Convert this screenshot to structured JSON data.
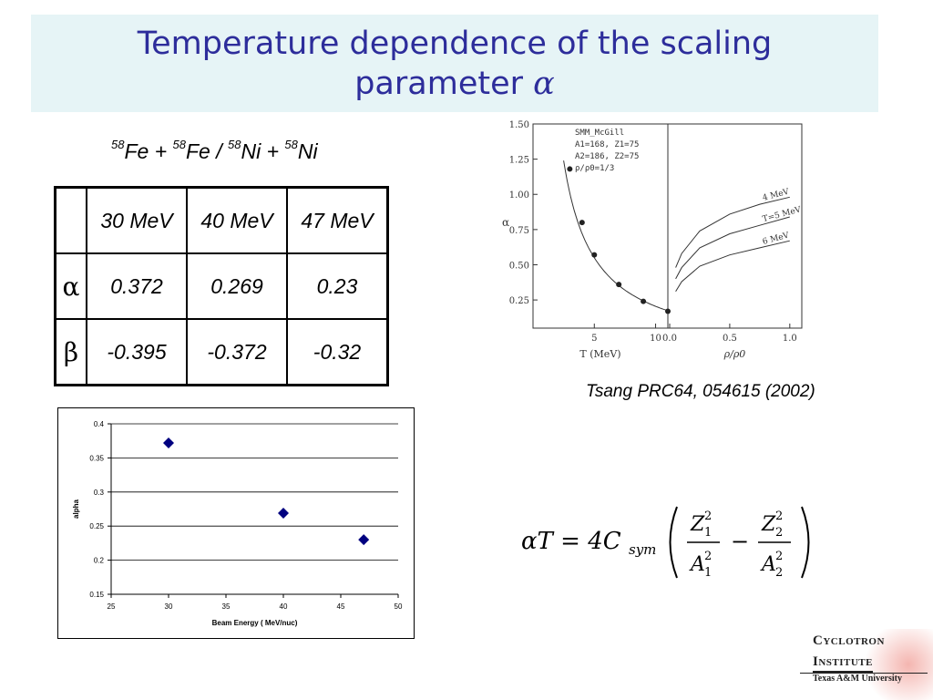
{
  "slide": {
    "title_line1": "Temperature dependence of the scaling",
    "title_line2": "parameter",
    "title_symbol": "α",
    "reaction": {
      "mass": "58",
      "p1": "Fe + ",
      "p2": "Fe / ",
      "p3": "Ni + ",
      "p4": "Ni"
    },
    "citation": "Tsang PRC64, 054615 (2002)",
    "formula": {
      "lhs": "αT = 4C",
      "sub": "sym"
    }
  },
  "table": {
    "headers": [
      "30 MeV",
      "40 MeV",
      "47 MeV"
    ],
    "rows": [
      {
        "label": "α",
        "values": [
          "0.372",
          "0.269",
          "0.23"
        ]
      },
      {
        "label": "β",
        "values": [
          "-0.395",
          "-0.372",
          "-0.32"
        ]
      }
    ]
  },
  "chart_data": [
    {
      "type": "scatter",
      "x": [
        30,
        40,
        47
      ],
      "y": [
        0.372,
        0.269,
        0.23
      ],
      "xlabel": "Beam Energy ( MeV/nuc)",
      "ylabel": "alpha",
      "xlim": [
        25,
        50
      ],
      "ylim": [
        0.15,
        0.4
      ],
      "xticks": [
        "25",
        "30",
        "35",
        "40",
        "45",
        "50"
      ],
      "yticks": [
        "0.15",
        "0.2",
        "0.25",
        "0.3",
        "0.35",
        "0.4"
      ],
      "grid": "horizontal",
      "marker_color": "#000080"
    },
    {
      "type": "scatter",
      "x": [
        3,
        4,
        5,
        7,
        9,
        11
      ],
      "y": [
        1.18,
        0.8,
        0.57,
        0.36,
        0.24,
        0.17
      ],
      "xlabel": "T (MeV)",
      "ylabel": "α",
      "xlim": [
        0,
        11
      ],
      "ylim": [
        0.05,
        1.5
      ],
      "xticks": [
        "5",
        "10"
      ],
      "yticks": [
        "0.25",
        "0.50",
        "0.75",
        "1.00",
        "1.25",
        "1.50"
      ],
      "legend_text": [
        "SMM_McGill",
        "A1=168, Z1=75",
        "A2=186, Z2=75",
        "ρ/ρ0=1/3"
      ]
    },
    {
      "type": "line",
      "xlabel": "ρ/ρ0",
      "xticks": [
        "0.0",
        "0.5",
        "1.0"
      ],
      "series": [
        {
          "name": "4 MeV",
          "x": [
            0.05,
            0.1,
            0.25,
            0.5,
            0.75,
            1.0
          ],
          "y": [
            0.48,
            0.58,
            0.74,
            0.86,
            0.93,
            0.98
          ]
        },
        {
          "name": "T=5 MeV",
          "x": [
            0.05,
            0.1,
            0.25,
            0.5,
            0.75,
            1.0
          ],
          "y": [
            0.4,
            0.48,
            0.62,
            0.72,
            0.78,
            0.84
          ]
        },
        {
          "name": "6 MeV",
          "x": [
            0.05,
            0.1,
            0.25,
            0.5,
            0.75,
            1.0
          ],
          "y": [
            0.31,
            0.38,
            0.49,
            0.57,
            0.62,
            0.67
          ]
        }
      ]
    }
  ],
  "logo": {
    "line1_cap": "C",
    "line1_rest": "YCLOTRON",
    "line2_cap": "I",
    "line2_rest": "NSTITUTE",
    "line3": "Texas A&M University"
  }
}
